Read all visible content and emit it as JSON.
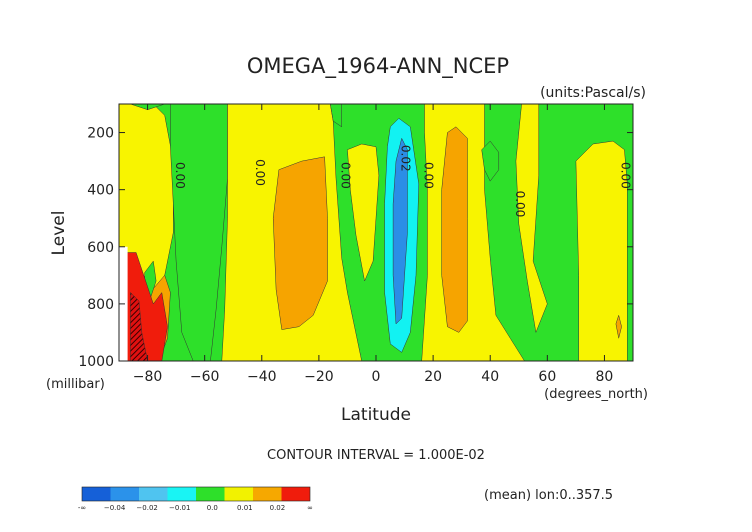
{
  "chart_data": {
    "type": "heatmap",
    "title": "OMEGA_1964-ANN_NCEP",
    "units": "(units:Pascal/s)",
    "xlabel": "Latitude",
    "ylabel": "Level",
    "x_units": "(degrees_north)",
    "y_units": "(millibar)",
    "xlim": [
      -90,
      90
    ],
    "ylim": [
      1000,
      100
    ],
    "x_ticks": [
      -80,
      -60,
      -40,
      -20,
      0,
      20,
      40,
      60,
      80
    ],
    "x_tick_labels": [
      "−80",
      "−60",
      "−40",
      "−20",
      "0",
      "20",
      "40",
      "60",
      "80"
    ],
    "y_ticks": [
      200,
      400,
      600,
      800,
      1000
    ],
    "y_tick_labels": [
      "200",
      "400",
      "600",
      "800",
      "1000"
    ],
    "contour_interval": "CONTOUR INTERVAL = 1.000E-02",
    "footnote": "(mean) lon:0..357.5",
    "contour_labels": [
      {
        "text": "0.00",
        "x": -70,
        "y": 350
      },
      {
        "text": "0.00",
        "x": -42,
        "y": 340
      },
      {
        "text": "0.00",
        "x": -12,
        "y": 350
      },
      {
        "text": "0.02",
        "x": 9,
        "y": 290
      },
      {
        "text": "0.00",
        "x": 17,
        "y": 350
      },
      {
        "text": "0.00",
        "x": 49,
        "y": 450
      },
      {
        "text": "0.00",
        "x": 86,
        "y": 350
      }
    ],
    "colorbar": {
      "colors": [
        "#1560d8",
        "#2b92ea",
        "#4fc4f0",
        "#19f4f4",
        "#2ee02a",
        "#f2f200",
        "#f6a800",
        "#f01c0c"
      ],
      "labels": [
        "-∞",
        "−0.04",
        "−0.02",
        "−0.01",
        "0.0",
        "0.01",
        "0.02",
        "∞"
      ]
    },
    "fill_colors": {
      "yellow": "#f8f400",
      "green": "#2ee02a",
      "orange": "#f6a400",
      "cyan": "#12f2f2",
      "blue": "#2b8ee6",
      "red": "#f01c0c",
      "darkred": "#8a0a0a"
    },
    "regions": [
      {
        "fill": "yellow",
        "outline": [
          [
            -90,
            100
          ],
          [
            -78,
            100
          ],
          [
            -74,
            140
          ],
          [
            -71,
            300
          ],
          [
            -71,
            550
          ],
          [
            -74,
            700
          ],
          [
            -78,
            800
          ],
          [
            -90,
            800
          ]
        ]
      },
      {
        "fill": "green",
        "outline": [
          [
            -86,
            100
          ],
          [
            -74,
            100
          ],
          [
            -80,
            120
          ]
        ]
      },
      {
        "fill": "green",
        "outline": [
          [
            -72,
            100
          ],
          [
            -52,
            100
          ],
          [
            -52,
            360
          ],
          [
            -54,
            600
          ],
          [
            -56,
            820
          ],
          [
            -58,
            1000
          ],
          [
            -64,
            1000
          ],
          [
            -68,
            900
          ],
          [
            -70,
            650
          ],
          [
            -71,
            450
          ],
          [
            -72,
            250
          ]
        ]
      },
      {
        "fill": "yellow",
        "outline": [
          [
            -52,
            100
          ],
          [
            -16,
            100
          ],
          [
            -15,
            160
          ],
          [
            -14,
            360
          ],
          [
            -12,
            640
          ],
          [
            -10,
            760
          ],
          [
            -5,
            1000
          ],
          [
            -54,
            1000
          ],
          [
            -53,
            820
          ],
          [
            -52,
            500
          ]
        ]
      },
      {
        "fill": "orange",
        "outline": [
          [
            -34,
            330
          ],
          [
            -26,
            300
          ],
          [
            -18,
            285
          ],
          [
            -17,
            500
          ],
          [
            -17,
            720
          ],
          [
            -22,
            840
          ],
          [
            -27,
            880
          ],
          [
            -33,
            890
          ],
          [
            -35,
            750
          ],
          [
            -36,
            500
          ]
        ]
      },
      {
        "fill": "green",
        "outline": [
          [
            -16,
            100
          ],
          [
            -12,
            100
          ],
          [
            -12,
            180
          ],
          [
            -15,
            160
          ]
        ]
      },
      {
        "fill": "yellow",
        "outline": [
          [
            -10,
            260
          ],
          [
            -5,
            240
          ],
          [
            0,
            250
          ],
          [
            1,
            350
          ],
          [
            0,
            500
          ],
          [
            -1,
            650
          ],
          [
            -4,
            720
          ],
          [
            -7,
            560
          ],
          [
            -9,
            400
          ]
        ]
      },
      {
        "fill": "cyan",
        "outline": [
          [
            5,
            180
          ],
          [
            8,
            150
          ],
          [
            12,
            180
          ],
          [
            15,
            380
          ],
          [
            14,
            700
          ],
          [
            12,
            900
          ],
          [
            9,
            970
          ],
          [
            5,
            940
          ],
          [
            3,
            760
          ],
          [
            3,
            450
          ],
          [
            4,
            250
          ]
        ]
      },
      {
        "fill": "blue",
        "outline": [
          [
            9,
            220
          ],
          [
            11,
            260
          ],
          [
            11,
            550
          ],
          [
            9,
            850
          ],
          [
            7,
            870
          ],
          [
            6,
            700
          ],
          [
            6,
            450
          ],
          [
            7,
            300
          ]
        ]
      },
      {
        "fill": "yellow",
        "outline": [
          [
            17,
            100
          ],
          [
            38,
            100
          ],
          [
            38,
            400
          ],
          [
            40,
            640
          ],
          [
            42,
            840
          ],
          [
            47,
            920
          ],
          [
            52,
            1000
          ],
          [
            16,
            1000
          ],
          [
            18,
            700
          ],
          [
            18,
            400
          ],
          [
            17,
            200
          ]
        ]
      },
      {
        "fill": "orange",
        "outline": [
          [
            25,
            200
          ],
          [
            28,
            180
          ],
          [
            32,
            220
          ],
          [
            32,
            500
          ],
          [
            32,
            860
          ],
          [
            29,
            900
          ],
          [
            25,
            880
          ],
          [
            23,
            700
          ],
          [
            23,
            400
          ]
        ]
      },
      {
        "fill": "yellow",
        "outline": [
          [
            51,
            100
          ],
          [
            57,
            100
          ],
          [
            57,
            350
          ],
          [
            55,
            650
          ],
          [
            60,
            800
          ],
          [
            56,
            900
          ],
          [
            53,
            720
          ],
          [
            50,
            520
          ],
          [
            49,
            300
          ]
        ]
      },
      {
        "fill": "green",
        "outline": [
          [
            37,
            260
          ],
          [
            40,
            230
          ],
          [
            43,
            270
          ],
          [
            43,
            330
          ],
          [
            40,
            370
          ],
          [
            38,
            330
          ]
        ]
      },
      {
        "fill": "yellow",
        "outline": [
          [
            70,
            300
          ],
          [
            76,
            240
          ],
          [
            83,
            230
          ],
          [
            87,
            260
          ],
          [
            88,
            380
          ],
          [
            88,
            1000
          ],
          [
            71,
            1000
          ],
          [
            71,
            700
          ]
        ]
      },
      {
        "fill": "orange",
        "outline": [
          [
            84,
            870
          ],
          [
            85,
            840
          ],
          [
            86,
            880
          ],
          [
            85,
            920
          ]
        ]
      },
      {
        "fill": "orange",
        "outline": [
          [
            -90,
            830
          ],
          [
            -80,
            770
          ],
          [
            -74,
            700
          ],
          [
            -72,
            760
          ],
          [
            -73,
            920
          ],
          [
            -76,
            1000
          ],
          [
            -90,
            1000
          ]
        ]
      },
      {
        "fill": "green",
        "outline": [
          [
            -81,
            690
          ],
          [
            -78,
            650
          ],
          [
            -77,
            720
          ],
          [
            -79,
            780
          ],
          [
            -81,
            760
          ]
        ]
      },
      {
        "fill": "red",
        "outline": [
          [
            -87,
            620
          ],
          [
            -84,
            620
          ],
          [
            -80,
            740
          ],
          [
            -78,
            800
          ],
          [
            -75,
            760
          ],
          [
            -73,
            880
          ],
          [
            -75,
            1000
          ],
          [
            -90,
            1000
          ],
          [
            -90,
            680
          ]
        ]
      },
      {
        "fill": "darkred",
        "outline": [
          [
            -86,
            760
          ],
          [
            -83,
            790
          ],
          [
            -82,
            900
          ],
          [
            -80,
            1000
          ],
          [
            -86,
            1000
          ]
        ]
      },
      {
        "fill": "white",
        "outline": [
          [
            -90,
            600
          ],
          [
            -87,
            600
          ],
          [
            -87,
            1000
          ],
          [
            -90,
            1000
          ]
        ]
      }
    ]
  }
}
